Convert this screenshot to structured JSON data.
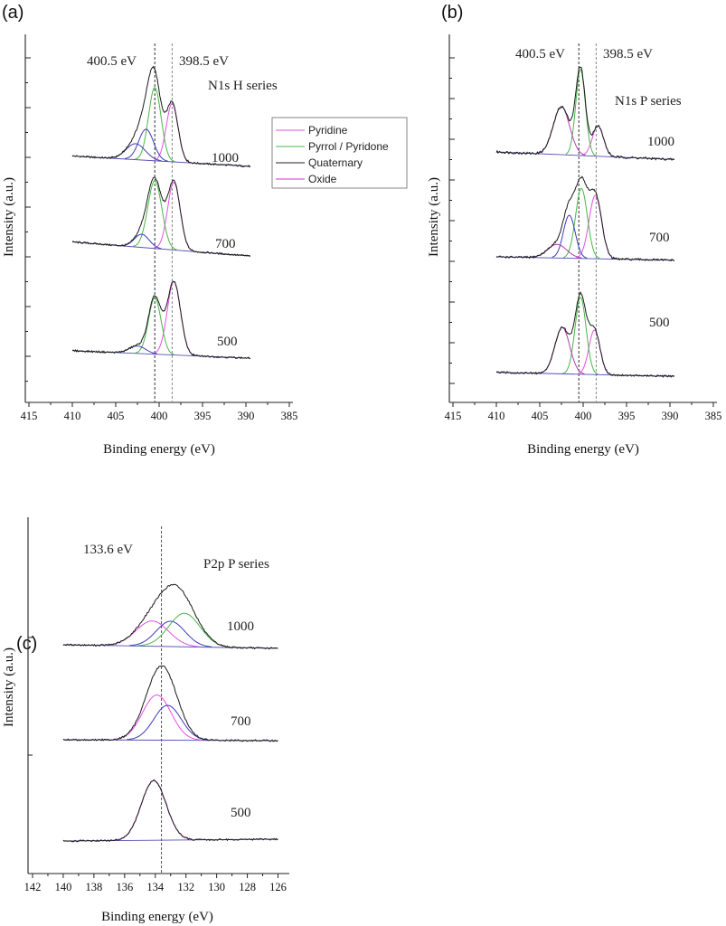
{
  "chart_data": [
    {
      "panel": "(a)",
      "type": "line",
      "title": "N1s H series",
      "xlabel": "Binding energy (eV)",
      "ylabel": "Intensity (a.u.)",
      "xlim": [
        415,
        385
      ],
      "xticks": [
        415,
        410,
        405,
        400,
        395,
        390,
        385
      ],
      "reference_lines": [
        {
          "x": 400.5,
          "label": "400.5 eV",
          "color": "#333333"
        },
        {
          "x": 398.5,
          "label": "398.5 eV",
          "color": "#888888"
        }
      ],
      "x_range": [
        410,
        389.5
      ],
      "legend": [
        {
          "name": "Pyridine",
          "color": "#e64fe6"
        },
        {
          "name": "Pyrrol / Pyridone",
          "color": "#49b649"
        },
        {
          "name": "Quaternary",
          "color": "#222222"
        },
        {
          "name": "Oxide",
          "color": "#cc33cc"
        }
      ],
      "series": [
        {
          "name": "1000",
          "offset": 2,
          "bg_left": 0.12,
          "bg_right": 0.01,
          "peaks": [
            {
              "component": "Pyridine",
              "center": 398.5,
              "fwhm": 1.6,
              "height": 0.62,
              "color": "#e64fe6"
            },
            {
              "component": "Pyrrol / Pyridone",
              "center": 400.5,
              "fwhm": 1.7,
              "height": 0.78,
              "color": "#49b649"
            },
            {
              "component": "Quaternary",
              "center": 401.5,
              "fwhm": 2.0,
              "height": 0.33,
              "color": "#3b3bbb"
            },
            {
              "component": "Oxide",
              "center": 402.7,
              "fwhm": 2.6,
              "height": 0.17,
              "color": "#4444aa"
            }
          ]
        },
        {
          "name": "700",
          "offset": 1,
          "bg_left": 0.12,
          "bg_right": -0.03,
          "peaks": [
            {
              "component": "Pyridine",
              "center": 398.3,
              "fwhm": 1.7,
              "height": 0.72,
              "color": "#e64fe6"
            },
            {
              "component": "Pyrrol / Pyridone",
              "center": 400.5,
              "fwhm": 1.9,
              "height": 0.72,
              "color": "#49b649"
            },
            {
              "component": "Quaternary",
              "center": 402.0,
              "fwhm": 2.0,
              "height": 0.14,
              "color": "#3b3bbb"
            }
          ]
        },
        {
          "name": "500",
          "offset": 0,
          "bg_left": 0.05,
          "bg_right": -0.03,
          "peaks": [
            {
              "component": "Pyridine",
              "center": 398.3,
              "fwhm": 1.8,
              "height": 0.78,
              "color": "#e64fe6"
            },
            {
              "component": "Pyrrol / Pyridone",
              "center": 400.5,
              "fwhm": 1.7,
              "height": 0.6,
              "color": "#49b649"
            },
            {
              "component": "Quaternary",
              "center": 402.5,
              "fwhm": 2.2,
              "height": 0.08,
              "color": "#3b3bbb"
            }
          ]
        }
      ]
    },
    {
      "panel": "(b)",
      "type": "line",
      "title": "N1s P series",
      "xlabel": "Binding energy (eV)",
      "ylabel": "Intensity (a.u.)",
      "xlim": [
        415,
        385
      ],
      "xticks": [
        415,
        410,
        405,
        400,
        395,
        390,
        385
      ],
      "reference_lines": [
        {
          "x": 400.5,
          "label": "400.5 eV",
          "color": "#333333"
        },
        {
          "x": 398.5,
          "label": "398.5 eV",
          "color": "#888888"
        }
      ],
      "x_range": [
        410,
        389.5
      ],
      "series": [
        {
          "name": "1000",
          "offset": 2,
          "bg_left": 0.0,
          "bg_right": -0.06,
          "peaks": [
            {
              "component": "Pyridine",
              "center": 398.3,
              "fwhm": 1.5,
              "height": 0.24,
              "color": "#e64fe6"
            },
            {
              "component": "Pyrrol / Pyridone",
              "center": 400.3,
              "fwhm": 1.3,
              "height": 0.68,
              "color": "#49b649"
            },
            {
              "component": "Quaternary",
              "center": 402.5,
              "fwhm": 2.2,
              "height": 0.38,
              "color": "#b03cb0"
            }
          ]
        },
        {
          "name": "700",
          "offset": 1,
          "bg_left": 0.0,
          "bg_right": -0.03,
          "peaks": [
            {
              "component": "Pyridine",
              "center": 398.6,
              "fwhm": 1.7,
              "height": 0.56,
              "color": "#e64fe6"
            },
            {
              "component": "Pyrrol / Pyridone",
              "center": 400.2,
              "fwhm": 1.6,
              "height": 0.62,
              "color": "#49b649"
            },
            {
              "component": "Quaternary",
              "center": 401.6,
              "fwhm": 1.6,
              "height": 0.38,
              "color": "#3b3bbb"
            },
            {
              "component": "Oxide",
              "center": 403.0,
              "fwhm": 2.6,
              "height": 0.12,
              "color": "#b03cb0"
            }
          ]
        },
        {
          "name": "500",
          "offset": 0,
          "bg_left": 0.02,
          "bg_right": -0.02,
          "peaks": [
            {
              "component": "Pyridine",
              "center": 398.7,
              "fwhm": 1.5,
              "height": 0.44,
              "color": "#e64fe6"
            },
            {
              "component": "Pyrrol / Pyridone",
              "center": 400.3,
              "fwhm": 1.5,
              "height": 0.76,
              "color": "#49b649"
            },
            {
              "component": "Quaternary",
              "center": 402.4,
              "fwhm": 2.0,
              "height": 0.46,
              "color": "#b03cb0"
            }
          ]
        }
      ]
    },
    {
      "panel": "(c)",
      "type": "line",
      "title": "P2p P series",
      "xlabel": "Binding energy (eV)",
      "ylabel": "Intensity (a.u.)",
      "xlim": [
        142,
        125.5
      ],
      "xticks": [
        142,
        140,
        138,
        136,
        134,
        132,
        130,
        128,
        126
      ],
      "reference_lines": [
        {
          "x": 133.6,
          "label": "133.6 eV",
          "color": "#555555"
        }
      ],
      "x_range": [
        140,
        126
      ],
      "series": [
        {
          "name": "1000",
          "offset": 2,
          "bg_left": 0.0,
          "bg_right": -0.04,
          "peaks": [
            {
              "center": 134.2,
              "fwhm": 2.5,
              "height": 0.28,
              "color": "#e64fe6"
            },
            {
              "center": 133.0,
              "fwhm": 2.2,
              "height": 0.28,
              "color": "#3b3bbb"
            },
            {
              "center": 132.1,
              "fwhm": 2.4,
              "height": 0.37,
              "color": "#49b649"
            }
          ]
        },
        {
          "name": "700",
          "offset": 1,
          "bg_left": 0.0,
          "bg_right": -0.01,
          "peaks": [
            {
              "center": 133.9,
              "fwhm": 2.2,
              "height": 0.48,
              "color": "#e64fe6"
            },
            {
              "center": 133.2,
              "fwhm": 2.1,
              "height": 0.37,
              "color": "#3b3bbb"
            }
          ]
        },
        {
          "name": "500",
          "offset": 0,
          "bg_left": 0.0,
          "bg_right": 0.02,
          "peaks": [
            {
              "center": 134.1,
              "fwhm": 1.9,
              "height": 0.66,
              "color": "#e64fe6"
            }
          ]
        }
      ]
    }
  ]
}
